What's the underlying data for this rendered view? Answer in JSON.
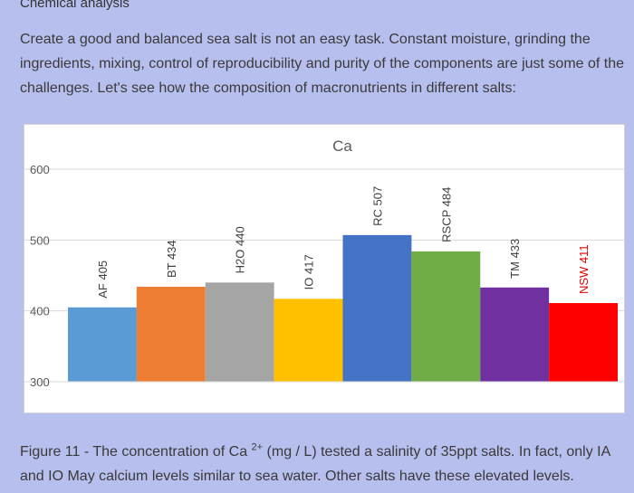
{
  "heading": "Chemical analysis",
  "intro": "Create a good and balanced sea salt is not an easy task. Constant moisture, grinding the ingredients, mixing, control of reproducibility and purity of the components are just some of the challenges. Let's see how the composition of macronutrients in different salts:",
  "caption": {
    "prefix": "Figure 11 - The concentration of Ca ",
    "superscript": "2+",
    "suffix": " (mg / L) tested a salinity of 35ppt salts. In fact, only IA and IO May calcium levels similar to sea water. Other salts have these elevated levels."
  },
  "chart_data": {
    "type": "bar",
    "title": "Ca",
    "xlabel": "",
    "ylabel": "",
    "ylim": [
      300,
      600
    ],
    "yticks": [
      300,
      400,
      500,
      600
    ],
    "grid": true,
    "categories": [
      "AF 405",
      "BT 434",
      "H2O 440",
      "IO 417",
      "RC 507",
      "RSCP 484",
      "TM 433",
      "NSW 411"
    ],
    "values": [
      405,
      434,
      440,
      417,
      507,
      484,
      433,
      411
    ],
    "colors": [
      "#5b9bd5",
      "#ed7d31",
      "#a5a5a5",
      "#ffc000",
      "#4472c4",
      "#70ad47",
      "#7030a0",
      "#ff0000"
    ],
    "label_colors": [
      "#404040",
      "#404040",
      "#404040",
      "#404040",
      "#404040",
      "#404040",
      "#404040",
      "#e00000"
    ]
  }
}
